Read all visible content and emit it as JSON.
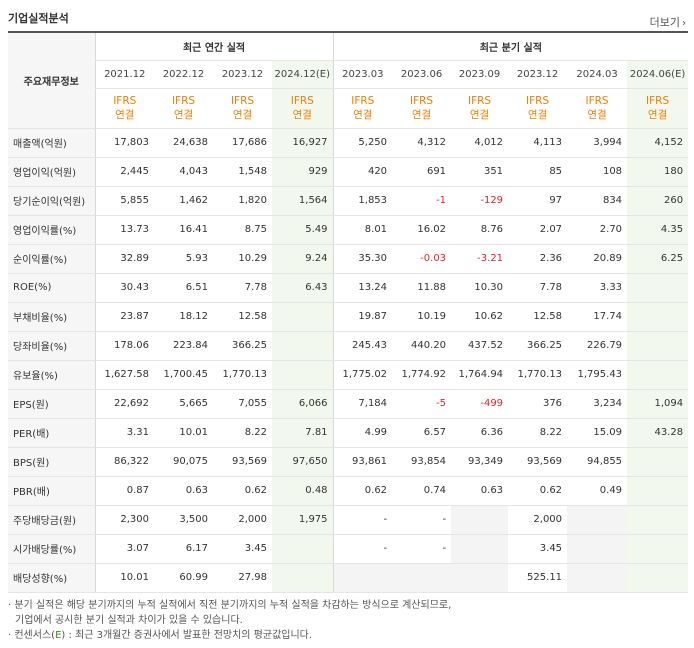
{
  "header": {
    "title": "기업실적분석",
    "more": "더보기",
    "more_icon": "chevron-right"
  },
  "table": {
    "corner_label": "주요재무정보",
    "annual_group": "최근 연간 실적",
    "quarter_group": "최근 분기 실적",
    "annual_periods": [
      "2021.12",
      "2022.12",
      "2023.12",
      "2024.12(E)"
    ],
    "quarter_periods": [
      "2023.03",
      "2023.06",
      "2023.09",
      "2023.12",
      "2024.03",
      "2024.06(E)"
    ],
    "basis_line1": "IFRS",
    "basis_line2": "연결",
    "rows": [
      {
        "label": "매출액(억원)",
        "values": [
          "17,803",
          "24,638",
          "17,686",
          "16,927",
          "5,250",
          "4,312",
          "4,012",
          "4,113",
          "3,994",
          "4,152"
        ]
      },
      {
        "label": "영업이익(억원)",
        "values": [
          "2,445",
          "4,043",
          "1,548",
          "929",
          "420",
          "691",
          "351",
          "85",
          "108",
          "180"
        ]
      },
      {
        "label": "당기순이익(억원)",
        "values": [
          "5,855",
          "1,462",
          "1,820",
          "1,564",
          "1,853",
          "-1",
          "-129",
          "97",
          "834",
          "260"
        ]
      },
      {
        "label": "영업이익률(%)",
        "values": [
          "13.73",
          "16.41",
          "8.75",
          "5.49",
          "8.01",
          "16.02",
          "8.76",
          "2.07",
          "2.70",
          "4.35"
        ]
      },
      {
        "label": "순이익률(%)",
        "values": [
          "32.89",
          "5.93",
          "10.29",
          "9.24",
          "35.30",
          "-0.03",
          "-3.21",
          "2.36",
          "20.89",
          "6.25"
        ]
      },
      {
        "label": "ROE(%)",
        "values": [
          "30.43",
          "6.51",
          "7.78",
          "6.43",
          "13.24",
          "11.88",
          "10.30",
          "7.78",
          "3.33",
          ""
        ]
      },
      {
        "label": "부채비율(%)",
        "values": [
          "23.87",
          "18.12",
          "12.58",
          "",
          "19.87",
          "10.19",
          "10.62",
          "12.58",
          "17.74",
          ""
        ]
      },
      {
        "label": "당좌비율(%)",
        "values": [
          "178.06",
          "223.84",
          "366.25",
          "",
          "245.43",
          "440.20",
          "437.52",
          "366.25",
          "226.79",
          ""
        ]
      },
      {
        "label": "유보율(%)",
        "values": [
          "1,627.58",
          "1,700.45",
          "1,770.13",
          "",
          "1,775.02",
          "1,774.92",
          "1,764.94",
          "1,770.13",
          "1,795.43",
          ""
        ]
      },
      {
        "label": "EPS(원)",
        "values": [
          "22,692",
          "5,665",
          "7,055",
          "6,066",
          "7,184",
          "-5",
          "-499",
          "376",
          "3,234",
          "1,094"
        ]
      },
      {
        "label": "PER(배)",
        "values": [
          "3.31",
          "10.01",
          "8.22",
          "7.81",
          "4.99",
          "6.57",
          "6.36",
          "8.22",
          "15.09",
          "43.28"
        ]
      },
      {
        "label": "BPS(원)",
        "values": [
          "86,322",
          "90,075",
          "93,569",
          "97,650",
          "93,861",
          "93,854",
          "93,349",
          "93,569",
          "94,855",
          ""
        ]
      },
      {
        "label": "PBR(배)",
        "values": [
          "0.87",
          "0.63",
          "0.62",
          "0.48",
          "0.62",
          "0.74",
          "0.63",
          "0.62",
          "0.49",
          ""
        ]
      },
      {
        "label": "주당배당금(원)",
        "values": [
          "2,300",
          "3,500",
          "2,000",
          "1,975",
          "-",
          "-",
          "",
          "2,000",
          "",
          ""
        ]
      },
      {
        "label": "시가배당률(%)",
        "values": [
          "3.07",
          "6.17",
          "3.45",
          "",
          "-",
          "-",
          "",
          "3.45",
          "",
          ""
        ]
      },
      {
        "label": "배당성향(%)",
        "values": [
          "10.01",
          "60.99",
          "27.98",
          "",
          "",
          "",
          "",
          "525.11",
          "",
          ""
        ]
      }
    ]
  },
  "notes": {
    "line1": "· 분기 실적은 해당 분기까지의 누적 실적에서 직전 분기까지의 누적 실적을 차감하는 방식으로 계산되므로,",
    "line2": "기업에서 공시한 분기 실적과 차이가 있을 수 있습니다.",
    "line3_prefix": "· 컨센서스(",
    "line3_e": "E",
    "line3_suffix": ") : 최근 3개월간 증권사에서 발표한 전망치의 평균값입니다."
  }
}
